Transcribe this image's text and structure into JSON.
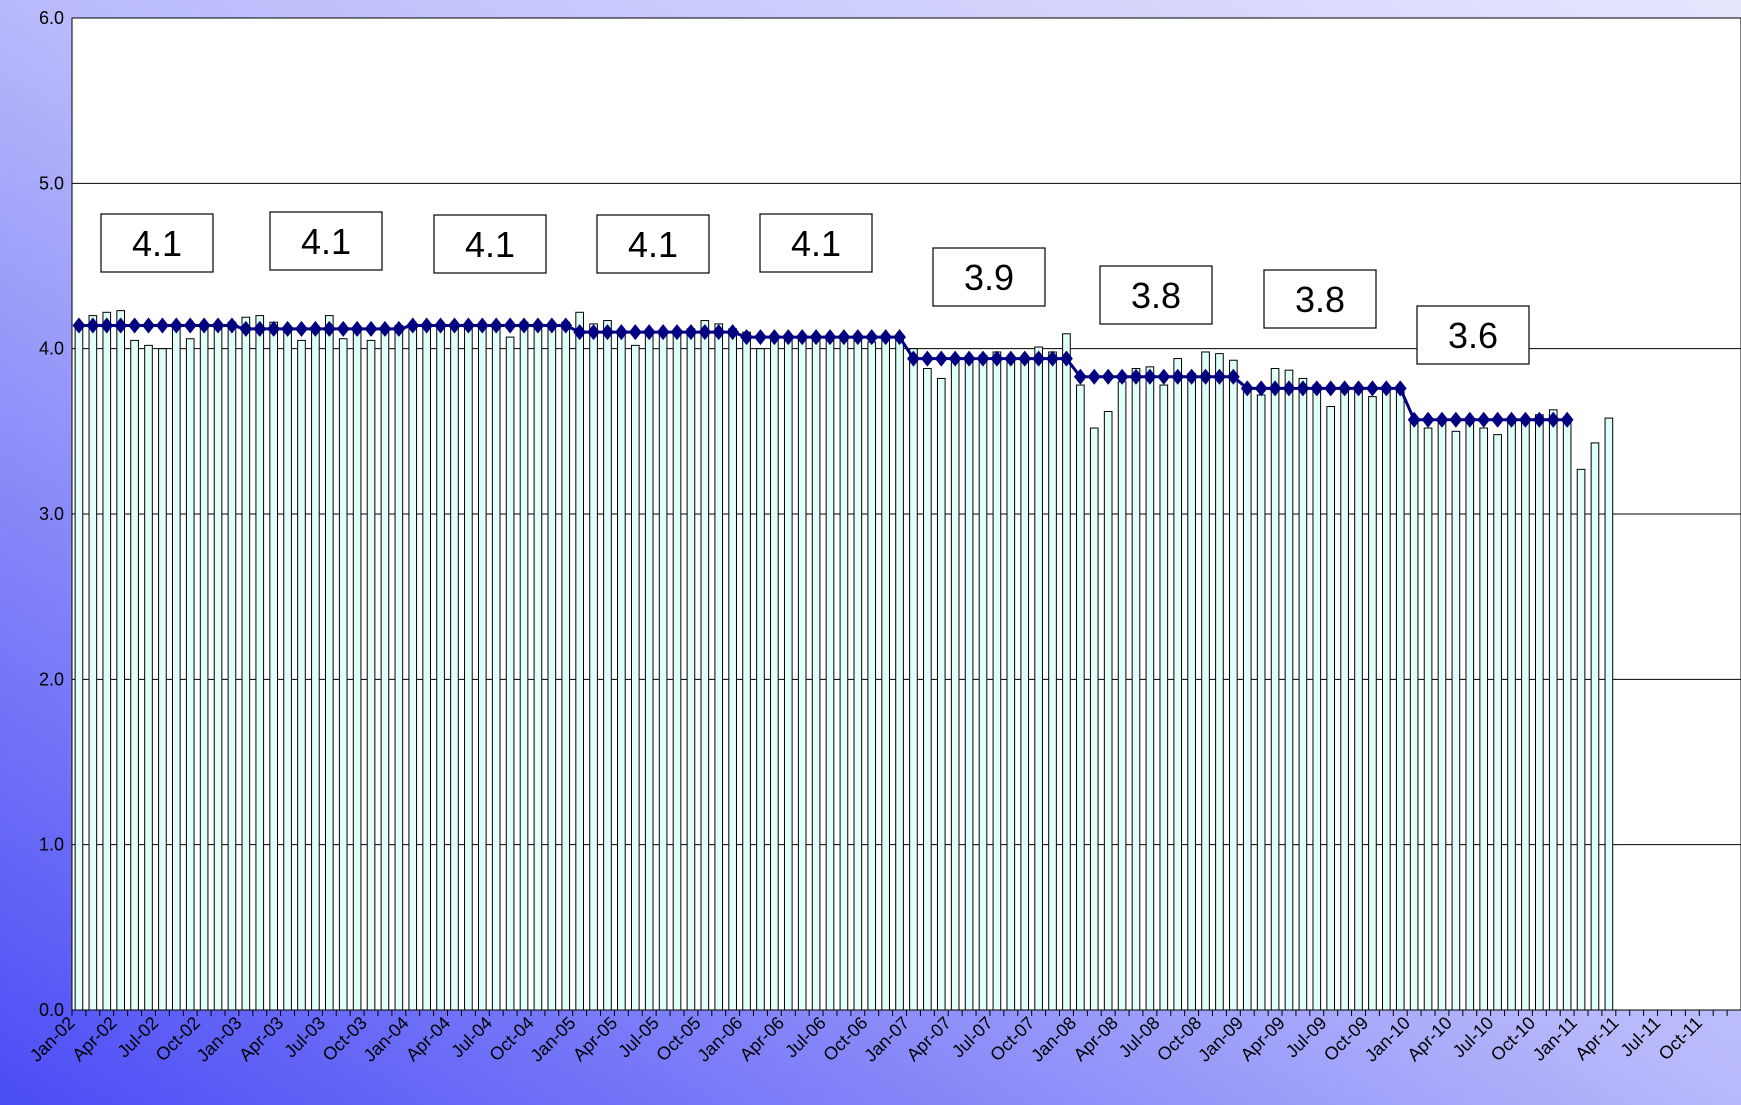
{
  "chart_data": {
    "type": "bar",
    "categories": [
      "Jan-02",
      null,
      null,
      "Apr-02",
      null,
      null,
      "Jul-02",
      null,
      null,
      "Oct-02",
      null,
      null,
      "Jan-03",
      null,
      null,
      "Apr-03",
      null,
      null,
      "Jul-03",
      null,
      null,
      "Oct-03",
      null,
      null,
      "Jan-04",
      null,
      null,
      "Apr-04",
      null,
      null,
      "Jul-04",
      null,
      null,
      "Oct-04",
      null,
      null,
      "Jan-05",
      null,
      null,
      "Apr-05",
      null,
      null,
      "Jul-05",
      null,
      null,
      "Oct-05",
      null,
      null,
      "Jan-06",
      null,
      null,
      "Apr-06",
      null,
      null,
      "Jul-06",
      null,
      null,
      "Oct-06",
      null,
      null,
      "Jan-07",
      null,
      null,
      "Apr-07",
      null,
      null,
      "Jul-07",
      null,
      null,
      "Oct-07",
      null,
      null,
      "Jan-08",
      null,
      null,
      "Apr-08",
      null,
      null,
      "Jul-08",
      null,
      null,
      "Oct-08",
      null,
      null,
      "Jan-09",
      null,
      null,
      "Apr-09",
      null,
      null,
      "Jul-09",
      null,
      null,
      "Oct-09",
      null,
      null,
      "Jan-10",
      null,
      null,
      "Apr-10",
      null,
      null,
      "Jul-10",
      null,
      null,
      "Oct-10",
      null,
      null,
      "Jan-11",
      null,
      null,
      "Apr-11",
      null,
      null,
      "Jul-11",
      null,
      null,
      "Oct-11",
      null,
      null
    ],
    "series": [
      {
        "type": "bar",
        "color": "#e0fff8",
        "values": [
          4.15,
          4.2,
          4.22,
          4.23,
          4.05,
          4.02,
          4.0,
          4.12,
          4.06,
          4.14,
          4.12,
          4.16,
          4.19,
          4.2,
          4.16,
          4.12,
          4.05,
          4.12,
          4.2,
          4.06,
          4.13,
          4.05,
          4.12,
          4.14,
          4.12,
          4.14,
          4.12,
          4.15,
          4.14,
          4.15,
          4.14,
          4.07,
          4.16,
          4.15,
          4.14,
          4.16,
          4.22,
          4.15,
          4.17,
          4.1,
          4.02,
          4.1,
          4.09,
          4.1,
          4.12,
          4.17,
          4.15,
          4.12,
          4.1,
          4.0,
          4.06,
          4.07,
          4.08,
          4.05,
          4.05,
          4.07,
          4.06,
          4.04,
          4.06,
          4.06,
          4.0,
          3.88,
          3.82,
          3.95,
          3.94,
          3.96,
          3.98,
          3.93,
          3.94,
          4.01,
          3.98,
          4.09,
          3.78,
          3.52,
          3.62,
          3.8,
          3.88,
          3.89,
          3.78,
          3.94,
          3.85,
          3.98,
          3.97,
          3.93,
          3.75,
          3.72,
          3.88,
          3.87,
          3.82,
          3.78,
          3.65,
          3.76,
          3.74,
          3.71,
          3.75,
          3.74,
          3.55,
          3.52,
          3.55,
          3.5,
          3.56,
          3.52,
          3.48,
          3.56,
          3.55,
          3.6,
          3.63,
          3.57,
          3.27,
          3.43,
          3.58,
          null,
          null,
          null,
          null,
          null,
          null,
          null,
          null,
          null
        ]
      },
      {
        "type": "line",
        "color": "#000080",
        "values": [
          4.14,
          4.14,
          4.14,
          4.14,
          4.14,
          4.14,
          4.14,
          4.14,
          4.14,
          4.14,
          4.14,
          4.14,
          4.12,
          4.12,
          4.12,
          4.12,
          4.12,
          4.12,
          4.12,
          4.12,
          4.12,
          4.12,
          4.12,
          4.12,
          4.14,
          4.14,
          4.14,
          4.14,
          4.14,
          4.14,
          4.14,
          4.14,
          4.14,
          4.14,
          4.14,
          4.14,
          4.1,
          4.1,
          4.1,
          4.1,
          4.1,
          4.1,
          4.1,
          4.1,
          4.1,
          4.1,
          4.1,
          4.1,
          4.07,
          4.07,
          4.07,
          4.07,
          4.07,
          4.07,
          4.07,
          4.07,
          4.07,
          4.07,
          4.07,
          4.07,
          3.94,
          3.94,
          3.94,
          3.94,
          3.94,
          3.94,
          3.94,
          3.94,
          3.94,
          3.94,
          3.94,
          3.94,
          3.83,
          3.83,
          3.83,
          3.83,
          3.83,
          3.83,
          3.83,
          3.83,
          3.83,
          3.83,
          3.83,
          3.83,
          3.76,
          3.76,
          3.76,
          3.76,
          3.76,
          3.76,
          3.76,
          3.76,
          3.76,
          3.76,
          3.76,
          3.76,
          3.57,
          3.57,
          3.57,
          3.57,
          3.57,
          3.57,
          3.57,
          3.57,
          3.57,
          3.57,
          3.57,
          3.57,
          null,
          null,
          null,
          null,
          null,
          null,
          null,
          null,
          null,
          null,
          null,
          null
        ]
      }
    ],
    "annotations": [
      "4.1",
      "4.1",
      "4.1",
      "4.1",
      "4.1",
      "3.9",
      "3.8",
      "3.8",
      "3.6"
    ],
    "ylim": [
      0,
      6
    ],
    "yticks": [
      {
        "value": 0,
        "label": "0.0"
      },
      {
        "value": 1,
        "label": "1.0"
      },
      {
        "value": 2,
        "label": "2.0"
      },
      {
        "value": 3,
        "label": "3.0"
      },
      {
        "value": 4,
        "label": "4.0"
      },
      {
        "value": 5,
        "label": "5.0"
      },
      {
        "value": 6,
        "label": "6.0"
      }
    ],
    "grid": true
  }
}
